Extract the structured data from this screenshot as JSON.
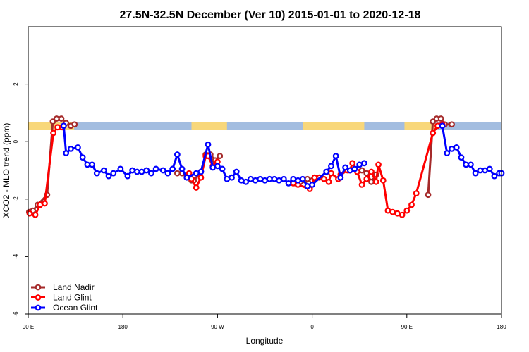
{
  "chart_data": {
    "type": "line",
    "title": "27.5N-32.5N December (Ver 10)   2015-01-01 to 2020-12-18",
    "xlabel": "Longitude",
    "ylabel": "XCO2 - MLO trend (ppm)",
    "xlim": [
      0,
      100
    ],
    "ylim": [
      -6,
      4
    ],
    "x_ticks": [
      {
        "pos": 0,
        "label": "90 E"
      },
      {
        "pos": 20,
        "label": "180"
      },
      {
        "pos": 40,
        "label": "90 W"
      },
      {
        "pos": 60,
        "label": "0"
      },
      {
        "pos": 80,
        "label": "90 E"
      },
      {
        "pos": 100,
        "label": "180"
      }
    ],
    "y_ticks": [
      {
        "value": 2,
        "label": "2"
      },
      {
        "value": 0,
        "label": "0"
      },
      {
        "value": -2,
        "label": "-2"
      },
      {
        "value": -4,
        "label": "-4"
      },
      {
        "value": -6,
        "label": "-6"
      }
    ],
    "surface_band": {
      "y_center": 0.55,
      "ocean_color": "#a3bde0",
      "land_color": "#f8d77a",
      "land_segments": [
        [
          0,
          9.7
        ],
        [
          34.5,
          42
        ],
        [
          58,
          71
        ],
        [
          79.5,
          86
        ]
      ]
    },
    "legend": {
      "position": "bottom-left",
      "entries": [
        {
          "label": "Land Nadir",
          "color": "#a52a2a"
        },
        {
          "label": "Land Glint",
          "color": "#ff0000"
        },
        {
          "label": "Ocean Glint",
          "color": "#0000ff"
        }
      ]
    },
    "series": [
      {
        "name": "Land Nadir",
        "color": "#a52a2a",
        "segments": [
          [
            [
              0.2,
              -2.45
            ],
            [
              1.0,
              -2.4
            ],
            [
              2.0,
              -2.2
            ],
            [
              4.0,
              -1.85
            ],
            [
              5.2,
              0.7
            ],
            [
              6.0,
              0.8
            ],
            [
              7.0,
              0.8
            ],
            [
              8.0,
              0.65
            ],
            [
              9.0,
              0.55
            ],
            [
              9.8,
              0.6
            ]
          ],
          [
            [
              31.5,
              -1.1
            ],
            [
              32.5,
              -1.1
            ],
            [
              33.5,
              -1.2
            ],
            [
              34.5,
              -1.35
            ],
            [
              35.0,
              -1.35
            ],
            [
              36.5,
              -1.05
            ],
            [
              37.5,
              -0.45
            ],
            [
              38.5,
              -0.45
            ],
            [
              39.5,
              -0.65
            ],
            [
              40.5,
              -0.5
            ]
          ],
          [
            [
              56.5,
              -1.45
            ],
            [
              57.5,
              -1.4
            ],
            [
              58.5,
              -1.35
            ],
            [
              59.0,
              -1.3
            ],
            [
              60.0,
              -1.35
            ]
          ],
          [
            [
              70.5,
              -1.0
            ],
            [
              71.5,
              -1.1
            ],
            [
              72.5,
              -1.4
            ],
            [
              73.5,
              -1.15
            ]
          ],
          [
            [
              84.5,
              -1.85
            ],
            [
              85.5,
              0.7
            ],
            [
              86.3,
              0.8
            ],
            [
              87.2,
              0.8
            ],
            [
              88.0,
              0.6
            ],
            [
              89.5,
              0.6
            ]
          ]
        ]
      },
      {
        "name": "Land Glint",
        "color": "#ff0000",
        "segments": [
          [
            [
              0.3,
              -2.5
            ],
            [
              1.5,
              -2.55
            ],
            [
              2.5,
              -2.2
            ],
            [
              3.5,
              -2.15
            ],
            [
              5.3,
              0.3
            ],
            [
              6.2,
              0.5
            ],
            [
              7.2,
              0.5
            ]
          ],
          [
            [
              34.0,
              -1.1
            ],
            [
              34.5,
              -1.3
            ],
            [
              35.5,
              -1.6
            ],
            [
              36.5,
              -1.25
            ],
            [
              37.5,
              -0.5
            ],
            [
              38.0,
              -0.5
            ],
            [
              39.0,
              -0.85
            ],
            [
              40.0,
              -0.7
            ]
          ],
          [
            [
              56.0,
              -1.45
            ],
            [
              57.0,
              -1.5
            ],
            [
              59.5,
              -1.65
            ],
            [
              60.5,
              -1.25
            ],
            [
              61.5,
              -1.25
            ],
            [
              62.5,
              -1.3
            ],
            [
              63.5,
              -1.4
            ],
            [
              64.0,
              -1.1
            ],
            [
              65.5,
              -1.3
            ],
            [
              66.0,
              -1.15
            ],
            [
              67.5,
              -1.0
            ],
            [
              68.0,
              -1.0
            ],
            [
              68.5,
              -0.75
            ],
            [
              69.5,
              -1.05
            ],
            [
              70.5,
              -1.5
            ],
            [
              71.5,
              -1.3
            ],
            [
              72.5,
              -1.05
            ],
            [
              73.5,
              -1.4
            ],
            [
              74.0,
              -0.8
            ],
            [
              75.0,
              -1.35
            ],
            [
              76.0,
              -2.4
            ],
            [
              77.0,
              -2.45
            ],
            [
              78.0,
              -2.5
            ],
            [
              79.0,
              -2.55
            ],
            [
              80.0,
              -2.4
            ],
            [
              81.0,
              -2.2
            ],
            [
              82.0,
              -1.8
            ],
            [
              85.5,
              0.3
            ],
            [
              86.5,
              0.55
            ],
            [
              87.5,
              0.6
            ]
          ]
        ]
      },
      {
        "name": "Ocean Glint",
        "color": "#0000ff",
        "segments": [
          [
            [
              7.5,
              0.55
            ],
            [
              8.0,
              -0.4
            ],
            [
              9.0,
              -0.25
            ],
            [
              10.5,
              -0.2
            ],
            [
              11.5,
              -0.55
            ],
            [
              12.5,
              -0.8
            ],
            [
              13.5,
              -0.8
            ],
            [
              14.5,
              -1.1
            ],
            [
              16.0,
              -1.0
            ],
            [
              17.0,
              -1.2
            ],
            [
              18.0,
              -1.1
            ],
            [
              19.5,
              -0.95
            ],
            [
              21.0,
              -1.2
            ],
            [
              22.0,
              -1.0
            ],
            [
              23.0,
              -1.05
            ],
            [
              24.0,
              -1.05
            ],
            [
              25.0,
              -1.0
            ],
            [
              26.0,
              -1.1
            ],
            [
              27.0,
              -0.95
            ],
            [
              28.5,
              -1.0
            ],
            [
              29.5,
              -1.1
            ],
            [
              30.5,
              -0.95
            ],
            [
              31.5,
              -0.45
            ],
            [
              32.5,
              -0.95
            ],
            [
              33.5,
              -1.25
            ],
            [
              35.5,
              -1.1
            ],
            [
              36.5,
              -1.05
            ],
            [
              38.0,
              -0.1
            ],
            [
              39.0,
              -0.9
            ],
            [
              40.0,
              -0.85
            ],
            [
              41.0,
              -0.95
            ],
            [
              42.0,
              -1.3
            ],
            [
              43.0,
              -1.25
            ],
            [
              44.0,
              -1.05
            ],
            [
              45.0,
              -1.35
            ],
            [
              46.0,
              -1.4
            ],
            [
              47.0,
              -1.3
            ],
            [
              48.0,
              -1.35
            ],
            [
              49.0,
              -1.3
            ],
            [
              50.0,
              -1.35
            ],
            [
              51.0,
              -1.3
            ],
            [
              52.0,
              -1.3
            ],
            [
              53.0,
              -1.35
            ],
            [
              54.0,
              -1.3
            ],
            [
              55.0,
              -1.45
            ],
            [
              56.0,
              -1.3
            ],
            [
              57.0,
              -1.35
            ],
            [
              58.0,
              -1.3
            ],
            [
              59.0,
              -1.55
            ],
            [
              60.0,
              -1.5
            ],
            [
              63.0,
              -1.05
            ],
            [
              64.0,
              -0.85
            ],
            [
              65.0,
              -0.5
            ],
            [
              66.0,
              -1.25
            ],
            [
              67.0,
              -0.9
            ],
            [
              68.0,
              -1.0
            ],
            [
              69.0,
              -0.95
            ],
            [
              70.0,
              -0.8
            ],
            [
              71.0,
              -0.75
            ]
          ],
          [
            [
              87.5,
              0.55
            ],
            [
              88.5,
              -0.4
            ],
            [
              89.5,
              -0.25
            ],
            [
              90.5,
              -0.2
            ],
            [
              91.5,
              -0.55
            ],
            [
              92.5,
              -0.8
            ],
            [
              93.5,
              -0.8
            ],
            [
              94.5,
              -1.1
            ],
            [
              95.5,
              -1.0
            ],
            [
              96.5,
              -1.0
            ],
            [
              97.5,
              -0.95
            ],
            [
              98.5,
              -1.2
            ],
            [
              99.5,
              -1.1
            ],
            [
              100.0,
              -1.1
            ]
          ]
        ]
      }
    ]
  }
}
